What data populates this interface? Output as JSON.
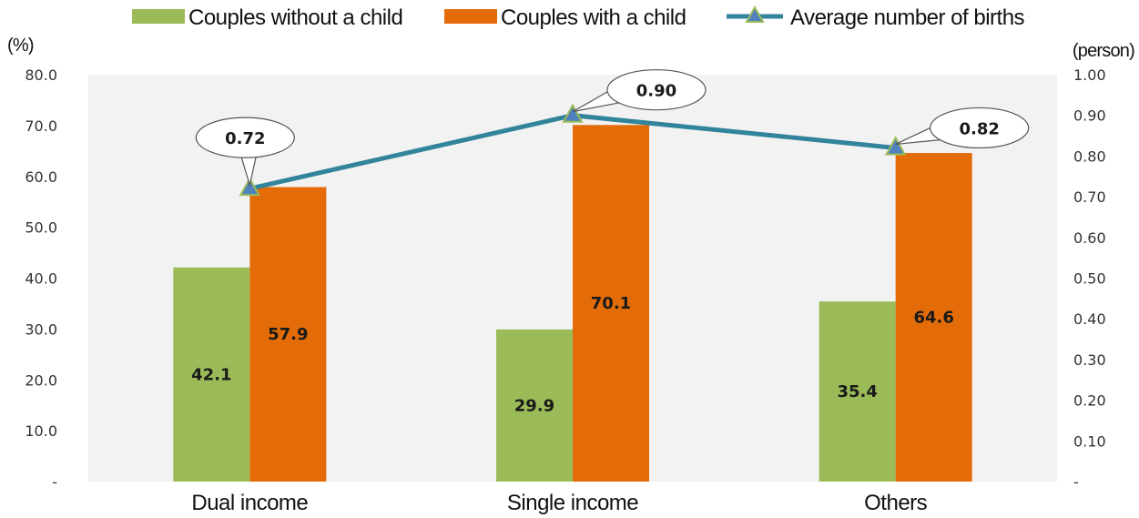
{
  "chart_data": {
    "type": "bar",
    "categories": [
      "Dual income",
      "Single income",
      "Others"
    ],
    "series": [
      {
        "name": "Couples without a child",
        "kind": "bar",
        "axis": "left",
        "color": "#9bbb59",
        "values": [
          42.1,
          29.9,
          35.4
        ],
        "labels": [
          "42.1",
          "29.9",
          "35.4"
        ]
      },
      {
        "name": "Couples with a child",
        "kind": "bar",
        "axis": "left",
        "color": "#e36c09",
        "values": [
          57.9,
          70.1,
          64.6
        ],
        "labels": [
          "57.9",
          "70.1",
          "64.6"
        ]
      },
      {
        "name": "Average number of births",
        "kind": "line",
        "axis": "right",
        "color": "#31849b",
        "marker_color": "#4f81bd",
        "marker_edge": "#9bbb59",
        "values": [
          0.72,
          0.9,
          0.82
        ],
        "labels": [
          "0.72",
          "0.90",
          "0.82"
        ]
      }
    ],
    "left_axis": {
      "unit": "(%)",
      "ylim": [
        0,
        80
      ],
      "ticks": [
        "-",
        "10.0",
        "20.0",
        "30.0",
        "40.0",
        "50.0",
        "60.0",
        "70.0",
        "80.0"
      ]
    },
    "right_axis": {
      "unit": "(person)",
      "ylim": [
        0,
        1.0
      ],
      "ticks": [
        "-",
        "0.10",
        "0.20",
        "0.30",
        "0.40",
        "0.50",
        "0.60",
        "0.70",
        "0.80",
        "0.90",
        "1.00"
      ]
    },
    "legend_position": "top",
    "plot_background": "#f2f2f2",
    "grid": false
  }
}
